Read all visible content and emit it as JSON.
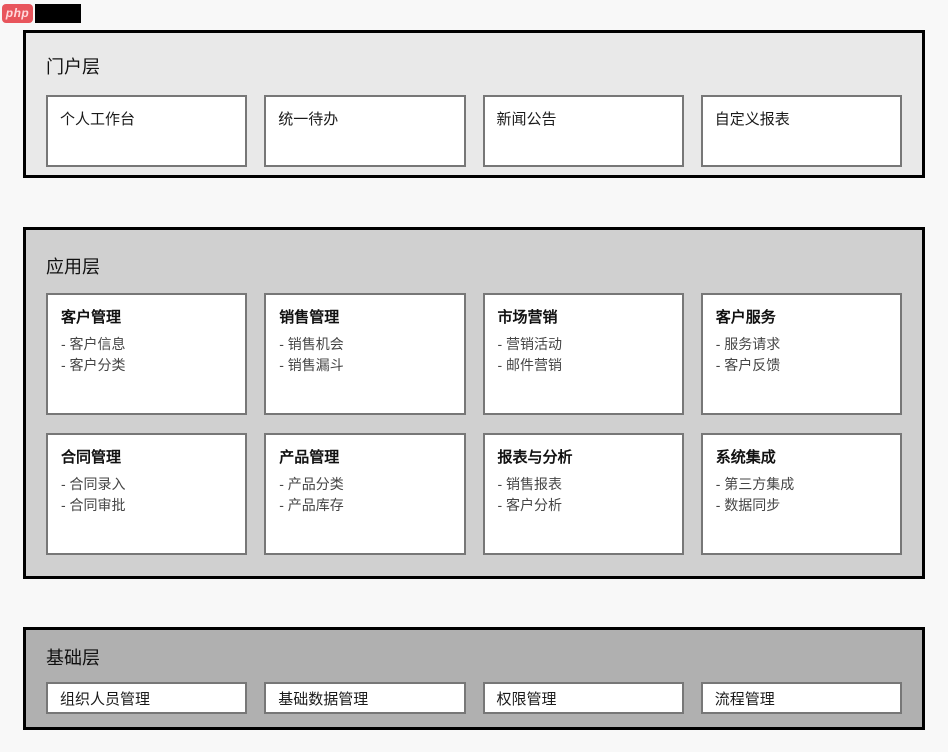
{
  "logo": {
    "badge_text": "php"
  },
  "colors": {
    "badge_red": "#e8555c",
    "portal_bg": "#e9e9e9",
    "application_bg": "#d0d0d0",
    "foundation_bg": "#b0b0b0",
    "section_border": "#000000",
    "box_border": "#777777",
    "page_bg": "#f8f8f8"
  },
  "layers": {
    "portal": {
      "title": "门户层",
      "items": [
        "个人工作台",
        "统一待办",
        "新闻公告",
        "自定义报表"
      ]
    },
    "application": {
      "title": "应用层",
      "modules": [
        {
          "title": "客户管理",
          "items": [
            "- 客户信息",
            "- 客户分类"
          ]
        },
        {
          "title": "销售管理",
          "items": [
            "- 销售机会",
            "- 销售漏斗"
          ]
        },
        {
          "title": "市场营销",
          "items": [
            "- 营销活动",
            "- 邮件营销"
          ]
        },
        {
          "title": "客户服务",
          "items": [
            "- 服务请求",
            "- 客户反馈"
          ]
        },
        {
          "title": "合同管理",
          "items": [
            "- 合同录入",
            "- 合同审批"
          ]
        },
        {
          "title": "产品管理",
          "items": [
            "- 产品分类",
            "- 产品库存"
          ]
        },
        {
          "title": "报表与分析",
          "items": [
            "- 销售报表",
            "- 客户分析"
          ]
        },
        {
          "title": "系统集成",
          "items": [
            "- 第三方集成",
            "- 数据同步"
          ]
        }
      ]
    },
    "foundation": {
      "title": "基础层",
      "items": [
        "组织人员管理",
        "基础数据管理",
        "权限管理",
        "流程管理"
      ]
    }
  }
}
